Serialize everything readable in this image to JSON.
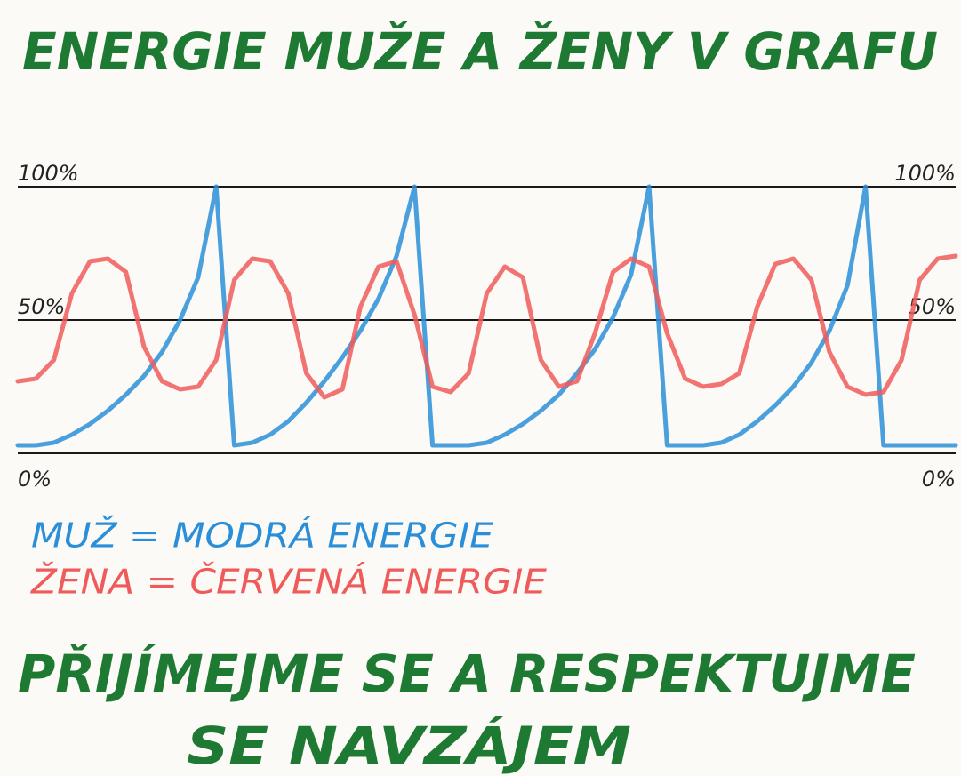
{
  "chart_data": {
    "type": "line",
    "title": "ENERGIE MUŽE A ŽENY V GRAFU",
    "categories": [
      null,
      null,
      null,
      null,
      null,
      null,
      null,
      null,
      null,
      null,
      null,
      null,
      null,
      null,
      null,
      null,
      null,
      null,
      null,
      null,
      null,
      null,
      null,
      null,
      null,
      null,
      null,
      null,
      null,
      null,
      null,
      null,
      null,
      null,
      null,
      null,
      null,
      null,
      null,
      null,
      null,
      null,
      null,
      null,
      null,
      null,
      null,
      null,
      null,
      null,
      null,
      null,
      null
    ],
    "series": [
      {
        "name": "MUŽ = MODRÁ ENERGIE",
        "color": "#2a8fd8",
        "values": [
          3,
          3,
          4,
          7,
          11,
          16,
          22,
          29,
          38,
          50,
          66,
          100,
          3,
          4,
          7,
          12,
          19,
          27,
          36,
          46,
          58,
          74,
          100,
          3,
          3,
          3,
          4,
          7,
          11,
          16,
          22,
          30,
          39,
          51,
          67,
          100,
          3,
          3,
          3,
          4,
          7,
          12,
          18,
          25,
          34,
          46,
          63,
          100,
          3,
          3,
          3,
          3,
          3
        ]
      },
      {
        "name": "ŽENA = ČERVENÁ ENERGIE",
        "color": "#ef5a5a",
        "values": [
          27,
          28,
          35,
          60,
          72,
          73,
          68,
          40,
          27,
          24,
          25,
          35,
          65,
          73,
          72,
          60,
          30,
          21,
          24,
          55,
          70,
          72,
          52,
          25,
          23,
          30,
          60,
          70,
          66,
          35,
          25,
          27,
          45,
          68,
          73,
          70,
          45,
          28,
          25,
          26,
          30,
          55,
          71,
          73,
          65,
          38,
          25,
          22,
          23,
          35,
          65,
          73,
          74
        ]
      }
    ],
    "ylim": [
      0,
      100
    ],
    "yticks": [
      {
        "value": 0,
        "label": "0%"
      },
      {
        "value": 50,
        "label": "50%"
      },
      {
        "value": 100,
        "label": "100%"
      }
    ],
    "y2lim": [
      0,
      100
    ],
    "y2ticks": [
      {
        "value": 0,
        "label": "0%"
      },
      {
        "value": 50,
        "label": "50%"
      },
      {
        "value": 100,
        "label": "100%"
      }
    ],
    "grid": true,
    "footer": [
      "PŘIJÍMEJME SE A RESPEKTUJME",
      "SE NAVZÁJEM"
    ]
  }
}
